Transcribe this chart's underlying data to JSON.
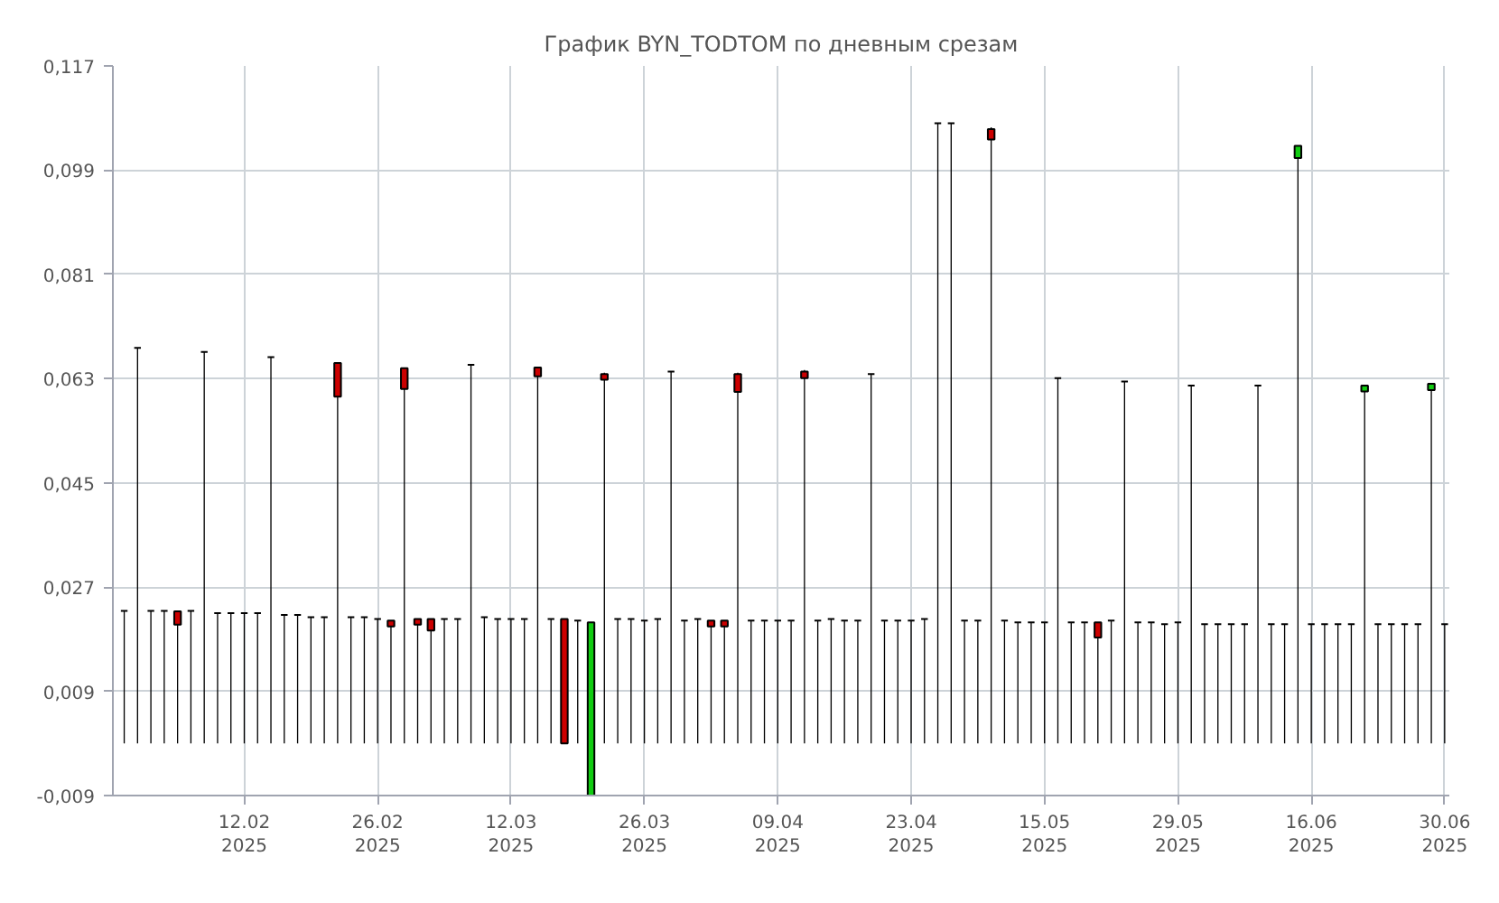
{
  "chart_data": {
    "type": "candlestick",
    "title": "График BYN_TODTOM по дневным срезам",
    "categories": [
      null,
      null,
      null,
      null,
      null,
      null,
      null,
      null,
      null,
      "12.02\n2025",
      null,
      null,
      null,
      null,
      null,
      null,
      null,
      null,
      null,
      "26.02\n2025",
      null,
      null,
      null,
      null,
      null,
      null,
      null,
      null,
      null,
      "12.03\n2025",
      null,
      null,
      null,
      null,
      null,
      null,
      null,
      null,
      null,
      "26.03\n2025",
      null,
      null,
      null,
      null,
      null,
      null,
      null,
      null,
      null,
      "09.04\n2025",
      null,
      null,
      null,
      null,
      null,
      null,
      null,
      null,
      null,
      "23.04\n2025",
      null,
      null,
      null,
      null,
      null,
      null,
      null,
      null,
      null,
      "15.05\n2025",
      null,
      null,
      null,
      null,
      null,
      null,
      null,
      null,
      null,
      "29.05\n2025",
      null,
      null,
      null,
      null,
      null,
      null,
      null,
      null,
      null,
      "16.06\n2025",
      null,
      null,
      null,
      null,
      null,
      null,
      null,
      null,
      null,
      "30.06\n2025"
    ],
    "ohlc": [
      [
        0.0229,
        0.0229,
        0,
        0.0229
      ],
      [
        0.0683,
        0.0683,
        0,
        0.0683
      ],
      [
        0.0229,
        0.0229,
        0,
        0.0229
      ],
      [
        0.0229,
        0.0229,
        0,
        0.0229
      ],
      [
        0.0228,
        0.0229,
        0,
        0.0205
      ],
      [
        0.0229,
        0.0229,
        0,
        0.0229
      ],
      [
        0.0676,
        0.0676,
        0,
        0.0676
      ],
      [
        0.0225,
        0.0225,
        0,
        0.0225
      ],
      [
        0.0225,
        0.0225,
        0,
        0.0225
      ],
      [
        0.0225,
        0.0225,
        0,
        0.0225
      ],
      [
        0.0225,
        0.0225,
        0,
        0.0225
      ],
      [
        0.0667,
        0.0667,
        0,
        0.0667
      ],
      [
        0.0222,
        0.0222,
        0,
        0.0222
      ],
      [
        0.0222,
        0.0222,
        0,
        0.0222
      ],
      [
        0.0218,
        0.0218,
        0,
        0.0218
      ],
      [
        0.0218,
        0.0218,
        0,
        0.0218
      ],
      [
        0.0657,
        0.0657,
        0,
        0.0599
      ],
      [
        0.0218,
        0.0218,
        0,
        0.0218
      ],
      [
        0.0218,
        0.0218,
        0,
        0.0218
      ],
      [
        0.0215,
        0.0215,
        0,
        0.0215
      ],
      [
        0.0212,
        0.0212,
        0,
        0.0202
      ],
      [
        0.0648,
        0.0648,
        0,
        0.0612
      ],
      [
        0.0215,
        0.0215,
        0,
        0.0205
      ],
      [
        0.0215,
        0.0215,
        0,
        0.0195
      ],
      [
        0.0215,
        0.0215,
        0,
        0.0215
      ],
      [
        0.0215,
        0.0215,
        0,
        0.0215
      ],
      [
        0.0654,
        0.0654,
        0,
        0.0654
      ],
      [
        0.0218,
        0.0218,
        0,
        0.0218
      ],
      [
        0.0215,
        0.0215,
        0,
        0.0215
      ],
      [
        0.0215,
        0.0215,
        0,
        0.0215
      ],
      [
        0.0215,
        0.0215,
        0,
        0.0215
      ],
      [
        0.0649,
        0.065,
        0,
        0.0634
      ],
      [
        0.0215,
        0.0215,
        0,
        0.0215
      ],
      [
        0.0215,
        0.0215,
        0,
        0
      ],
      [
        0.0212,
        0.0212,
        0,
        0.0212
      ],
      [
        -0.009,
        0.0209,
        -0.009,
        0.0209
      ],
      [
        0.0638,
        0.064,
        0,
        0.0628
      ],
      [
        0.0215,
        0.0215,
        0,
        0.0215
      ],
      [
        0.0215,
        0.0215,
        0,
        0.0215
      ],
      [
        0.0212,
        0.0212,
        0,
        0.0212
      ],
      [
        0.0215,
        0.0215,
        0,
        0.0215
      ],
      [
        0.0642,
        0.0642,
        0,
        0.0642
      ],
      [
        0.0212,
        0.0212,
        0,
        0.0212
      ],
      [
        0.0215,
        0.0215,
        0,
        0.0215
      ],
      [
        0.0212,
        0.0212,
        0,
        0.0202
      ],
      [
        0.0212,
        0.0212,
        0,
        0.0202
      ],
      [
        0.0638,
        0.064,
        0,
        0.0607
      ],
      [
        0.0212,
        0.0212,
        0,
        0.0212
      ],
      [
        0.0212,
        0.0212,
        0,
        0.0212
      ],
      [
        0.0212,
        0.0212,
        0,
        0.0212
      ],
      [
        0.0212,
        0.0212,
        0,
        0.0212
      ],
      [
        0.0642,
        0.0645,
        0,
        0.0631
      ],
      [
        0.0212,
        0.0212,
        0,
        0.0212
      ],
      [
        0.0215,
        0.0215,
        0,
        0.0215
      ],
      [
        0.0212,
        0.0212,
        0,
        0.0212
      ],
      [
        0.0212,
        0.0212,
        0,
        0.0212
      ],
      [
        0.0638,
        0.0638,
        0,
        0.0638
      ],
      [
        0.0212,
        0.0212,
        0,
        0.0212
      ],
      [
        0.0212,
        0.0212,
        0,
        0.0212
      ],
      [
        0.0212,
        0.0212,
        0,
        0.0212
      ],
      [
        0.0215,
        0.0215,
        0,
        0.0215
      ],
      [
        0.1071,
        0.1071,
        0,
        0.1071
      ],
      [
        0.1071,
        0.1071,
        0,
        0.1071
      ],
      [
        0.0212,
        0.0212,
        0,
        0.0212
      ],
      [
        0.0212,
        0.0212,
        0,
        0.0212
      ],
      [
        0.1061,
        0.1064,
        0,
        0.1043
      ],
      [
        0.0212,
        0.0212,
        0,
        0.0212
      ],
      [
        0.0209,
        0.0209,
        0,
        0.0209
      ],
      [
        0.0209,
        0.0209,
        0,
        0.0209
      ],
      [
        0.0209,
        0.0209,
        0,
        0.0209
      ],
      [
        0.0631,
        0.0631,
        0,
        0.0631
      ],
      [
        0.0209,
        0.0209,
        0,
        0.0209
      ],
      [
        0.0209,
        0.0209,
        0,
        0.0209
      ],
      [
        0.0209,
        0.0209,
        0,
        0.0183
      ],
      [
        0.0212,
        0.0212,
        0,
        0.0212
      ],
      [
        0.0625,
        0.0625,
        0,
        0.0625
      ],
      [
        0.0209,
        0.0209,
        0,
        0.0209
      ],
      [
        0.0209,
        0.0209,
        0,
        0.0209
      ],
      [
        0.0206,
        0.0206,
        0,
        0.0206
      ],
      [
        0.0209,
        0.0209,
        0,
        0.0209
      ],
      [
        0.0618,
        0.0618,
        0,
        0.0618
      ],
      [
        0.0206,
        0.0206,
        0,
        0.0206
      ],
      [
        0.0206,
        0.0206,
        0,
        0.0206
      ],
      [
        0.0206,
        0.0206,
        0,
        0.0206
      ],
      [
        0.0206,
        0.0206,
        0,
        0.0206
      ],
      [
        0.0618,
        0.0618,
        0,
        0.0618
      ],
      [
        0.0206,
        0.0206,
        0,
        0.0206
      ],
      [
        0.0206,
        0.0206,
        0,
        0.0206
      ],
      [
        0.1011,
        0.1032,
        0,
        0.1032
      ],
      [
        0.0206,
        0.0206,
        0,
        0.0206
      ],
      [
        0.0206,
        0.0206,
        0,
        0.0206
      ],
      [
        0.0206,
        0.0206,
        0,
        0.0206
      ],
      [
        0.0206,
        0.0206,
        0,
        0.0206
      ],
      [
        0.0608,
        0.0618,
        0,
        0.0618
      ],
      [
        0.0206,
        0.0206,
        0,
        0.0206
      ],
      [
        0.0206,
        0.0206,
        0,
        0.0206
      ],
      [
        0.0206,
        0.0206,
        0,
        0.0206
      ],
      [
        0.0206,
        0.0206,
        0,
        0.0206
      ],
      [
        0.061,
        0.0621,
        0,
        0.0621
      ],
      [
        0.0206,
        0.0206,
        0,
        0.0206
      ]
    ],
    "ylim": [
      -0.009,
      0.117
    ],
    "yticks": [
      {
        "value": -0.009,
        "label": "-0,009"
      },
      {
        "value": 0.009,
        "label": "0,009"
      },
      {
        "value": 0.027,
        "label": "0,027"
      },
      {
        "value": 0.045,
        "label": "0,045"
      },
      {
        "value": 0.063,
        "label": "0,063"
      },
      {
        "value": 0.081,
        "label": "0,081"
      },
      {
        "value": 0.099,
        "label": "0,099"
      },
      {
        "value": 0.117,
        "label": "0,117"
      }
    ],
    "grid": true
  }
}
